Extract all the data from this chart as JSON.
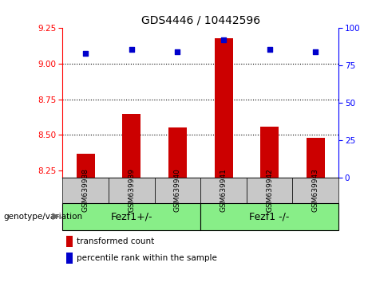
{
  "title": "GDS4446 / 10442596",
  "categories": [
    "GSM639938",
    "GSM639939",
    "GSM639940",
    "GSM639941",
    "GSM639942",
    "GSM639943"
  ],
  "bar_values": [
    8.37,
    8.65,
    8.55,
    9.18,
    8.56,
    8.48
  ],
  "scatter_values": [
    83,
    86,
    84,
    92,
    86,
    84
  ],
  "bar_color": "#cc0000",
  "scatter_color": "#0000cc",
  "ylim_left": [
    8.2,
    9.25
  ],
  "ylim_right": [
    0,
    100
  ],
  "yticks_left": [
    8.25,
    8.5,
    8.75,
    9.0,
    9.25
  ],
  "yticks_right": [
    0,
    25,
    50,
    75,
    100
  ],
  "hlines": [
    9.0,
    8.75,
    8.5
  ],
  "group1": {
    "label": "Fezf1+/-",
    "indices": [
      0,
      1,
      2
    ]
  },
  "group2": {
    "label": "Fezf1 -/-",
    "indices": [
      3,
      4,
      5
    ]
  },
  "genotype_label": "genotype/variation",
  "legend_items": [
    "transformed count",
    "percentile rank within the sample"
  ],
  "group_color": "#88ee88",
  "tick_bg_color": "#c8c8c8",
  "bar_bottom": 8.2,
  "bar_width": 0.4
}
